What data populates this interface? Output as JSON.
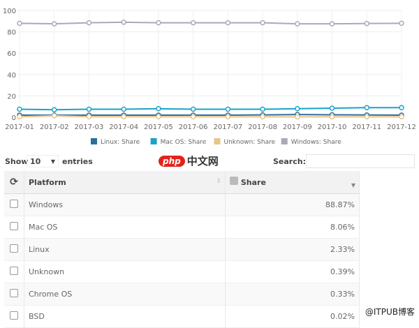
{
  "chart_data": {
    "type": "line",
    "x": [
      "2017-01",
      "2017-02",
      "2017-03",
      "2017-04",
      "2017-05",
      "2017-06",
      "2017-07",
      "2017-08",
      "2017-09",
      "2017-10",
      "2017-11",
      "2017-12"
    ],
    "ylim": [
      0,
      100
    ],
    "yticks": [
      0,
      20,
      40,
      60,
      80,
      100
    ],
    "grid": true,
    "legend_position": "bottom",
    "series": [
      {
        "name": "Linux: Share",
        "color": "#2c6e9b",
        "values": [
          2.0,
          2.0,
          2.0,
          2.0,
          2.0,
          2.0,
          2.0,
          2.2,
          2.5,
          2.3,
          2.1,
          2.0
        ]
      },
      {
        "name": "Mac OS: Share",
        "color": "#1aa3c9",
        "values": [
          7.5,
          7.0,
          7.5,
          7.5,
          8.0,
          7.5,
          7.5,
          7.5,
          8.0,
          8.5,
          9.0,
          9.0
        ]
      },
      {
        "name": "Unknown: Share",
        "color": "#e8c48c",
        "values": [
          0.5,
          1.5,
          0.5,
          0.5,
          0.5,
          0.4,
          0.4,
          0.4,
          0.4,
          0.4,
          0.4,
          0.4
        ]
      },
      {
        "name": "Windows: Share",
        "color": "#a9a9bd",
        "values": [
          88.0,
          87.5,
          88.5,
          89.0,
          88.5,
          88.5,
          88.5,
          88.5,
          87.5,
          87.5,
          87.8,
          88.0
        ]
      }
    ]
  },
  "controls": {
    "show": "Show",
    "entries_value": "10",
    "entries": "entries",
    "search": "Search:"
  },
  "logo": {
    "php": "php",
    "cn": "中文网"
  },
  "table": {
    "headers": {
      "platform": "Platform",
      "share": "Share"
    },
    "rows": [
      {
        "platform": "Windows",
        "share": "88.87%"
      },
      {
        "platform": "Mac OS",
        "share": "8.06%"
      },
      {
        "platform": "Linux",
        "share": "2.33%"
      },
      {
        "platform": "Unknown",
        "share": "0.39%"
      },
      {
        "platform": "Chrome OS",
        "share": "0.33%"
      },
      {
        "platform": "BSD",
        "share": "0.02%"
      }
    ]
  },
  "watermark": "@ITPUB博客"
}
